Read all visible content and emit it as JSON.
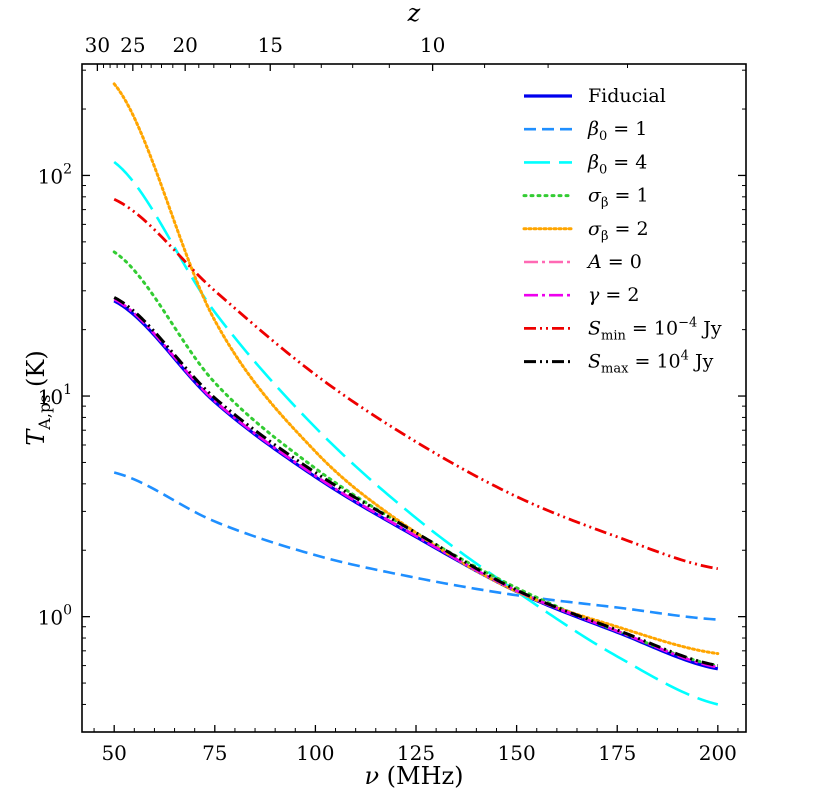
{
  "chart_data": {
    "type": "line",
    "title": "",
    "xlabel": "ν (MHz)",
    "ylabel": "T_A,ps (K)",
    "top_xlabel": "z",
    "xlim": [
      42,
      207
    ],
    "ylim": [
      0.3,
      320
    ],
    "yscale": "log",
    "x_ticks": [
      50,
      75,
      100,
      125,
      150,
      175,
      200
    ],
    "y_ticks": [
      {
        "value": 1,
        "label": "10^0"
      },
      {
        "value": 10,
        "label": "10^1"
      },
      {
        "value": 100,
        "label": "10^2"
      }
    ],
    "top_ticks": [
      {
        "z": 30,
        "label": "30"
      },
      {
        "z": 25,
        "label": "25"
      },
      {
        "z": 20,
        "label": "20"
      },
      {
        "z": 15,
        "label": "15"
      },
      {
        "z": 10,
        "label": "10"
      }
    ],
    "legend_position": "top-right",
    "x": [
      50,
      75,
      100,
      125,
      150,
      175,
      200
    ],
    "series": [
      {
        "name": "Fiducial",
        "label_parts": [
          [
            "Fiducial",
            ""
          ]
        ],
        "color": "#0000ee",
        "dash": "",
        "width": 3.2,
        "values": [
          27,
          9.4,
          4.3,
          2.3,
          1.3,
          0.85,
          0.58
        ]
      },
      {
        "name": "β0 = 1",
        "label_parts": [
          [
            "β",
            "i"
          ],
          [
            "0",
            "sub"
          ],
          [
            " = 1",
            ""
          ]
        ],
        "color": "#1f8fff",
        "dash": "12 6",
        "width": 2.6,
        "values": [
          4.5,
          2.7,
          1.9,
          1.5,
          1.25,
          1.1,
          0.97
        ]
      },
      {
        "name": "β0 = 4",
        "label_parts": [
          [
            "β",
            "i"
          ],
          [
            "0",
            "sub"
          ],
          [
            " = 4",
            ""
          ]
        ],
        "color": "#00ffff",
        "dash": "26 9",
        "width": 2.6,
        "values": [
          115,
          24,
          7.2,
          2.8,
          1.3,
          0.66,
          0.4
        ]
      },
      {
        "name": "σβ = 1",
        "label_parts": [
          [
            "σ",
            "i"
          ],
          [
            "β",
            "sub"
          ],
          [
            " = 1",
            ""
          ]
        ],
        "color": "#33cc33",
        "dash": "2 5",
        "width": 3,
        "values": [
          45,
          11.5,
          4.7,
          2.4,
          1.35,
          0.86,
          0.6
        ]
      },
      {
        "name": "σβ = 2",
        "label_parts": [
          [
            "σ",
            "i"
          ],
          [
            "β",
            "sub"
          ],
          [
            " = 2",
            ""
          ]
        ],
        "color": "#ffa500",
        "dash": "2 3",
        "width": 3,
        "values": [
          260,
          22,
          5.6,
          2.4,
          1.3,
          0.9,
          0.68
        ]
      },
      {
        "name": "A = 0",
        "label_parts": [
          [
            "A",
            "i"
          ],
          [
            " = 0",
            ""
          ]
        ],
        "color": "#ff69b4",
        "dash": "14 4 3 4",
        "width": 2.6,
        "values": [
          27.5,
          9.5,
          4.35,
          2.32,
          1.31,
          0.86,
          0.59
        ]
      },
      {
        "name": "γ = 2",
        "label_parts": [
          [
            "γ",
            "i"
          ],
          [
            " = 2",
            ""
          ]
        ],
        "color": "#ee00ee",
        "dash": "14 4 3 4",
        "width": 2.6,
        "values": [
          27.5,
          9.5,
          4.35,
          2.32,
          1.31,
          0.86,
          0.59
        ]
      },
      {
        "name": "Smin = 10^-4 Jy",
        "label_parts": [
          [
            "S",
            "i"
          ],
          [
            "min",
            "sub"
          ],
          [
            " = 10",
            ""
          ],
          [
            "−4",
            "sup"
          ],
          [
            " Jy",
            ""
          ]
        ],
        "color": "#ee0000",
        "dash": "12 4 2 4 2 4",
        "width": 2.8,
        "values": [
          78,
          30,
          12.5,
          6.2,
          3.5,
          2.3,
          1.65
        ]
      },
      {
        "name": "Smax = 10^4 Jy",
        "label_parts": [
          [
            "S",
            "i"
          ],
          [
            "max",
            "sub"
          ],
          [
            " = 10",
            ""
          ],
          [
            "4",
            "sup"
          ],
          [
            " Jy",
            ""
          ]
        ],
        "color": "#000000",
        "dash": "12 4 2 4 2 4",
        "width": 3,
        "values": [
          28,
          9.8,
          4.5,
          2.4,
          1.32,
          0.87,
          0.6
        ]
      }
    ]
  }
}
